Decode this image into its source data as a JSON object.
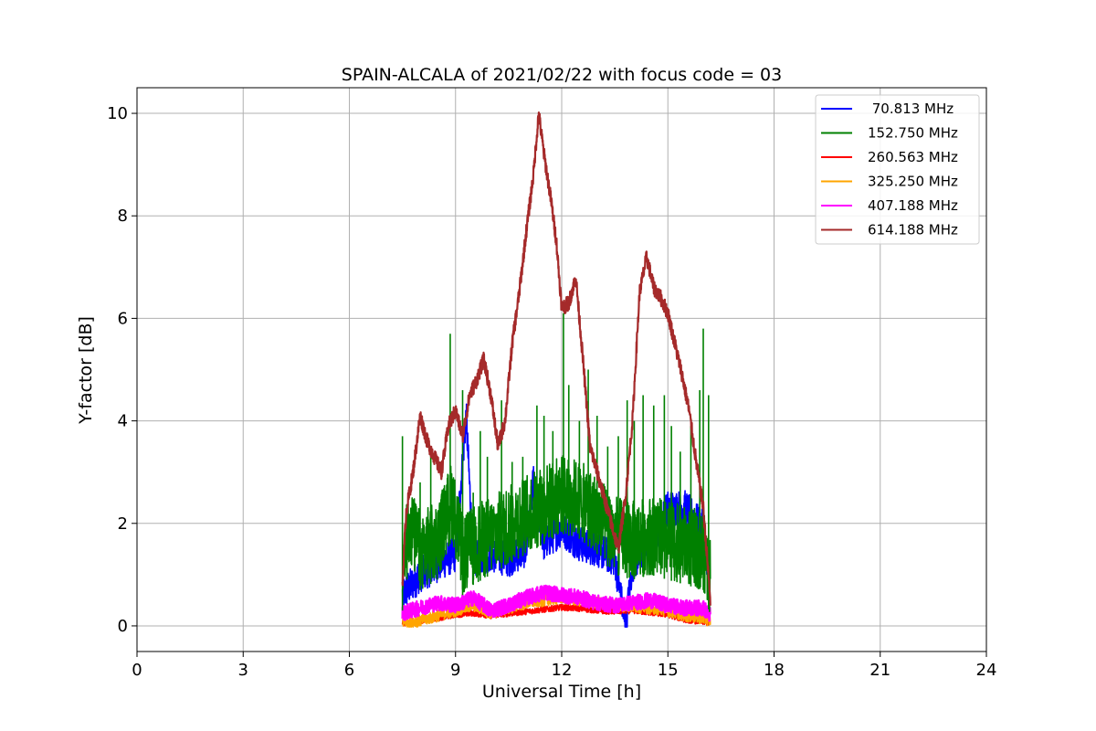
{
  "chart_data": {
    "type": "line",
    "title": "SPAIN-ALCALA of 2021/02/22 with focus code = 03",
    "xlabel": "Universal Time [h]",
    "ylabel": "Y-factor [dB]",
    "xlim": [
      0,
      24
    ],
    "ylim": [
      -0.5,
      10.5
    ],
    "xticks": [
      0,
      3,
      6,
      9,
      12,
      15,
      18,
      21,
      24
    ],
    "yticks": [
      0,
      2,
      4,
      6,
      8,
      10
    ],
    "grid": true,
    "legend_position": "top-right",
    "series": [
      {
        "name": " 70.813 MHz",
        "color": "#0000ff",
        "points": [
          [
            7.5,
            0.6
          ],
          [
            8.0,
            1.0
          ],
          [
            8.5,
            1.2
          ],
          [
            9.0,
            1.4
          ],
          [
            9.3,
            4.1
          ],
          [
            9.5,
            1.3
          ],
          [
            10.0,
            1.4
          ],
          [
            10.5,
            1.3
          ],
          [
            11.0,
            1.5
          ],
          [
            11.2,
            2.8
          ],
          [
            11.5,
            1.6
          ],
          [
            12.0,
            1.9
          ],
          [
            12.5,
            1.6
          ],
          [
            13.0,
            1.5
          ],
          [
            13.5,
            1.3
          ],
          [
            13.8,
            0.0
          ],
          [
            14.0,
            1.2
          ],
          [
            14.5,
            1.6
          ],
          [
            15.0,
            2.3
          ],
          [
            15.5,
            2.3
          ],
          [
            16.0,
            1.9
          ],
          [
            16.2,
            0.3
          ]
        ],
        "noise": 0.35
      },
      {
        "name": "152.750 MHz",
        "color": "#008000",
        "points": [
          [
            7.5,
            0.9
          ],
          [
            7.7,
            1.8
          ],
          [
            8.0,
            1.3
          ],
          [
            8.5,
            1.5
          ],
          [
            8.9,
            2.3
          ],
          [
            9.2,
            1.2
          ],
          [
            9.5,
            1.4
          ],
          [
            10.0,
            1.6
          ],
          [
            10.5,
            1.8
          ],
          [
            11.0,
            2.0
          ],
          [
            11.5,
            2.2
          ],
          [
            12.0,
            2.4
          ],
          [
            12.5,
            2.3
          ],
          [
            13.0,
            2.0
          ],
          [
            13.5,
            1.6
          ],
          [
            14.0,
            1.5
          ],
          [
            14.5,
            1.6
          ],
          [
            15.0,
            1.5
          ],
          [
            15.5,
            1.4
          ],
          [
            16.0,
            1.3
          ],
          [
            16.2,
            0.8
          ]
        ],
        "noise": 1.1,
        "spikes": [
          [
            7.5,
            3.7
          ],
          [
            8.0,
            2.8
          ],
          [
            8.3,
            3.5
          ],
          [
            8.85,
            5.7
          ],
          [
            9.2,
            4.6
          ],
          [
            9.5,
            2.6
          ],
          [
            9.7,
            3.8
          ],
          [
            9.9,
            3.3
          ],
          [
            10.3,
            4.4
          ],
          [
            10.6,
            3.2
          ],
          [
            10.9,
            3.3
          ],
          [
            11.3,
            4.3
          ],
          [
            11.5,
            4.1
          ],
          [
            11.75,
            3.8
          ],
          [
            12.05,
            6.1
          ],
          [
            12.2,
            4.7
          ],
          [
            12.5,
            4.0
          ],
          [
            12.75,
            5.0
          ],
          [
            13.0,
            4.1
          ],
          [
            13.3,
            3.5
          ],
          [
            13.6,
            3.7
          ],
          [
            13.85,
            4.4
          ],
          [
            14.05,
            4.0
          ],
          [
            14.3,
            4.5
          ],
          [
            14.6,
            4.3
          ],
          [
            14.9,
            4.5
          ],
          [
            15.1,
            3.9
          ],
          [
            15.35,
            3.4
          ],
          [
            15.65,
            3.9
          ],
          [
            15.9,
            4.6
          ],
          [
            16.0,
            5.8
          ],
          [
            16.15,
            4.5
          ]
        ]
      },
      {
        "name": "260.563 MHz",
        "color": "#ff0000",
        "points": [
          [
            7.5,
            0.05
          ],
          [
            8.0,
            0.1
          ],
          [
            8.5,
            0.15
          ],
          [
            9.0,
            0.22
          ],
          [
            9.5,
            0.25
          ],
          [
            10.0,
            0.2
          ],
          [
            10.5,
            0.24
          ],
          [
            11.0,
            0.28
          ],
          [
            11.5,
            0.32
          ],
          [
            12.0,
            0.36
          ],
          [
            12.5,
            0.34
          ],
          [
            13.0,
            0.3
          ],
          [
            13.5,
            0.28
          ],
          [
            14.0,
            0.3
          ],
          [
            14.5,
            0.26
          ],
          [
            15.0,
            0.22
          ],
          [
            15.5,
            0.12
          ],
          [
            16.0,
            0.08
          ],
          [
            16.2,
            0.05
          ]
        ],
        "noise": 0.06
      },
      {
        "name": "325.250 MHz",
        "color": "#ffa500",
        "points": [
          [
            7.5,
            0.08
          ],
          [
            8.0,
            0.1
          ],
          [
            8.5,
            0.2
          ],
          [
            9.0,
            0.3
          ],
          [
            9.5,
            0.4
          ],
          [
            10.0,
            0.25
          ],
          [
            10.5,
            0.35
          ],
          [
            11.0,
            0.45
          ],
          [
            11.5,
            0.5
          ],
          [
            12.0,
            0.55
          ],
          [
            12.5,
            0.5
          ],
          [
            13.0,
            0.45
          ],
          [
            13.5,
            0.4
          ],
          [
            14.0,
            0.38
          ],
          [
            14.5,
            0.35
          ],
          [
            15.0,
            0.3
          ],
          [
            15.5,
            0.2
          ],
          [
            16.0,
            0.15
          ],
          [
            16.2,
            0.1
          ]
        ],
        "noise": 0.12
      },
      {
        "name": "407.188 MHz",
        "color": "#ff00ff",
        "points": [
          [
            7.5,
            0.25
          ],
          [
            8.0,
            0.35
          ],
          [
            8.5,
            0.45
          ],
          [
            9.0,
            0.4
          ],
          [
            9.5,
            0.55
          ],
          [
            10.0,
            0.3
          ],
          [
            10.5,
            0.4
          ],
          [
            11.0,
            0.55
          ],
          [
            11.5,
            0.65
          ],
          [
            12.0,
            0.6
          ],
          [
            12.5,
            0.55
          ],
          [
            13.0,
            0.45
          ],
          [
            13.5,
            0.4
          ],
          [
            14.0,
            0.45
          ],
          [
            14.5,
            0.5
          ],
          [
            15.0,
            0.4
          ],
          [
            15.5,
            0.35
          ],
          [
            16.0,
            0.35
          ],
          [
            16.2,
            0.2
          ]
        ],
        "noise": 0.15
      },
      {
        "name": "614.188 MHz",
        "color": "#a52a2a",
        "points": [
          [
            7.5,
            0.8
          ],
          [
            7.6,
            2.2
          ],
          [
            7.8,
            3.0
          ],
          [
            8.0,
            4.1
          ],
          [
            8.2,
            3.6
          ],
          [
            8.4,
            3.3
          ],
          [
            8.6,
            3.0
          ],
          [
            8.8,
            3.9
          ],
          [
            9.0,
            4.2
          ],
          [
            9.2,
            3.7
          ],
          [
            9.4,
            4.5
          ],
          [
            9.6,
            4.8
          ],
          [
            9.8,
            5.2
          ],
          [
            10.0,
            4.5
          ],
          [
            10.2,
            3.5
          ],
          [
            10.4,
            4.0
          ],
          [
            10.6,
            5.5
          ],
          [
            10.8,
            6.5
          ],
          [
            11.0,
            7.7
          ],
          [
            11.2,
            8.8
          ],
          [
            11.35,
            10.0
          ],
          [
            11.5,
            9.2
          ],
          [
            11.7,
            8.3
          ],
          [
            11.85,
            7.5
          ],
          [
            12.0,
            6.2
          ],
          [
            12.2,
            6.3
          ],
          [
            12.4,
            6.8
          ],
          [
            12.6,
            5.2
          ],
          [
            12.8,
            3.5
          ],
          [
            13.0,
            3.0
          ],
          [
            13.2,
            2.5
          ],
          [
            13.4,
            2.0
          ],
          [
            13.6,
            1.5
          ],
          [
            13.8,
            2.5
          ],
          [
            14.0,
            4.0
          ],
          [
            14.2,
            6.5
          ],
          [
            14.4,
            7.2
          ],
          [
            14.6,
            6.6
          ],
          [
            14.8,
            6.4
          ],
          [
            15.0,
            6.1
          ],
          [
            15.2,
            5.5
          ],
          [
            15.4,
            4.9
          ],
          [
            15.6,
            4.2
          ],
          [
            15.8,
            3.2
          ],
          [
            16.0,
            2.3
          ],
          [
            16.2,
            0.5
          ]
        ],
        "noise": 0.15
      }
    ]
  }
}
